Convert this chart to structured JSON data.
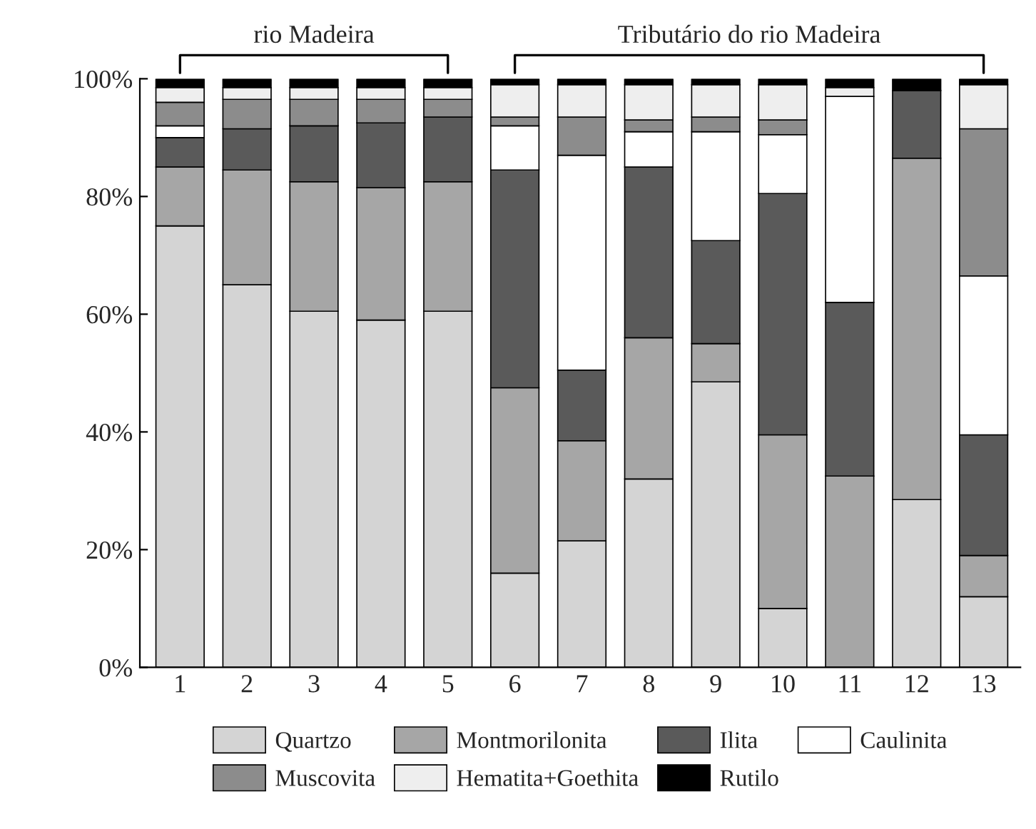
{
  "chart_data": {
    "type": "bar",
    "stacked": true,
    "categories": [
      "1",
      "2",
      "3",
      "4",
      "5",
      "6",
      "7",
      "8",
      "9",
      "10",
      "11",
      "12",
      "13"
    ],
    "series": [
      {
        "name": "Quartzo",
        "color": "#d4d4d4",
        "values": [
          75,
          65,
          60.5,
          59,
          60.5,
          16,
          21.5,
          32,
          48.5,
          10,
          0,
          28.5,
          12
        ]
      },
      {
        "name": "Montmorilonita",
        "color": "#a6a6a6",
        "values": [
          10,
          19.5,
          22,
          22.5,
          22,
          31.5,
          17,
          24,
          6.5,
          29.5,
          32.5,
          58,
          7
        ]
      },
      {
        "name": "Ilita",
        "color": "#5a5a5a",
        "values": [
          5,
          7,
          9.5,
          11,
          11,
          37,
          12,
          29,
          17.5,
          41,
          29.5,
          11.5,
          20.5
        ]
      },
      {
        "name": "Caulinita",
        "color": "#ffffff",
        "values": [
          2,
          0,
          0,
          0,
          0,
          7.5,
          36.5,
          6,
          18.5,
          10,
          35,
          0,
          27
        ]
      },
      {
        "name": "Muscovita",
        "color": "#8c8c8c",
        "values": [
          4,
          5,
          4.5,
          4,
          3,
          1.5,
          6.5,
          2,
          2.5,
          2.5,
          0,
          0,
          25
        ]
      },
      {
        "name": "Hematita+Goethita",
        "color": "#eeeeee",
        "values": [
          2.5,
          2,
          2,
          2,
          2,
          5.5,
          5.5,
          6,
          5.5,
          6,
          1.5,
          0,
          7.5
        ]
      },
      {
        "name": "Rutilo",
        "color": "#000000",
        "values": [
          1.5,
          1.5,
          1.5,
          1.5,
          1.5,
          1,
          1,
          1,
          1,
          1,
          1.5,
          2,
          1
        ]
      }
    ],
    "ylim": [
      0,
      100
    ],
    "yticks": [
      {
        "value": 0,
        "label": "0%"
      },
      {
        "value": 20,
        "label": "20%"
      },
      {
        "value": 40,
        "label": "40%"
      },
      {
        "value": 60,
        "label": "60%"
      },
      {
        "value": 80,
        "label": "80%"
      },
      {
        "value": 100,
        "label": "100%"
      }
    ],
    "annotations": [
      "rio Madeira",
      "Tributário do rio Madeira"
    ],
    "legend": "bottom",
    "grid": false
  }
}
